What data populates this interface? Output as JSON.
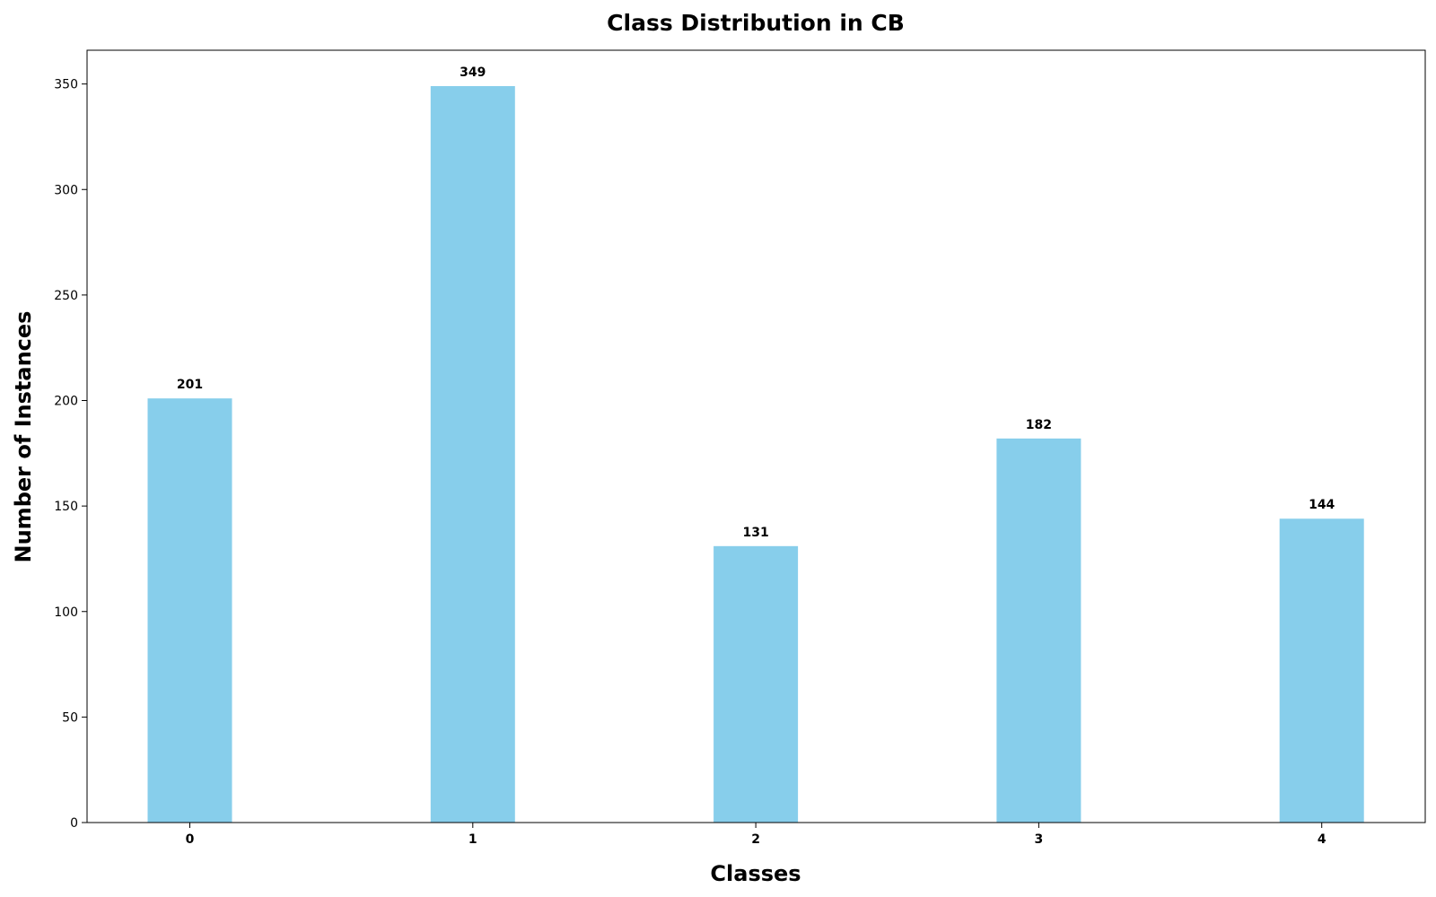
{
  "chart_data": {
    "type": "bar",
    "title": "Class Distribution in CB",
    "xlabel": "Classes",
    "ylabel": "Number of Instances",
    "categories": [
      "0",
      "1",
      "2",
      "3",
      "4"
    ],
    "values": [
      201,
      349,
      131,
      182,
      144
    ],
    "ylim": [
      0,
      366
    ],
    "yticks": [
      0,
      50,
      100,
      150,
      200,
      250,
      300,
      350
    ],
    "bar_color": "#87CEEB",
    "grid": false,
    "legend": "none"
  }
}
